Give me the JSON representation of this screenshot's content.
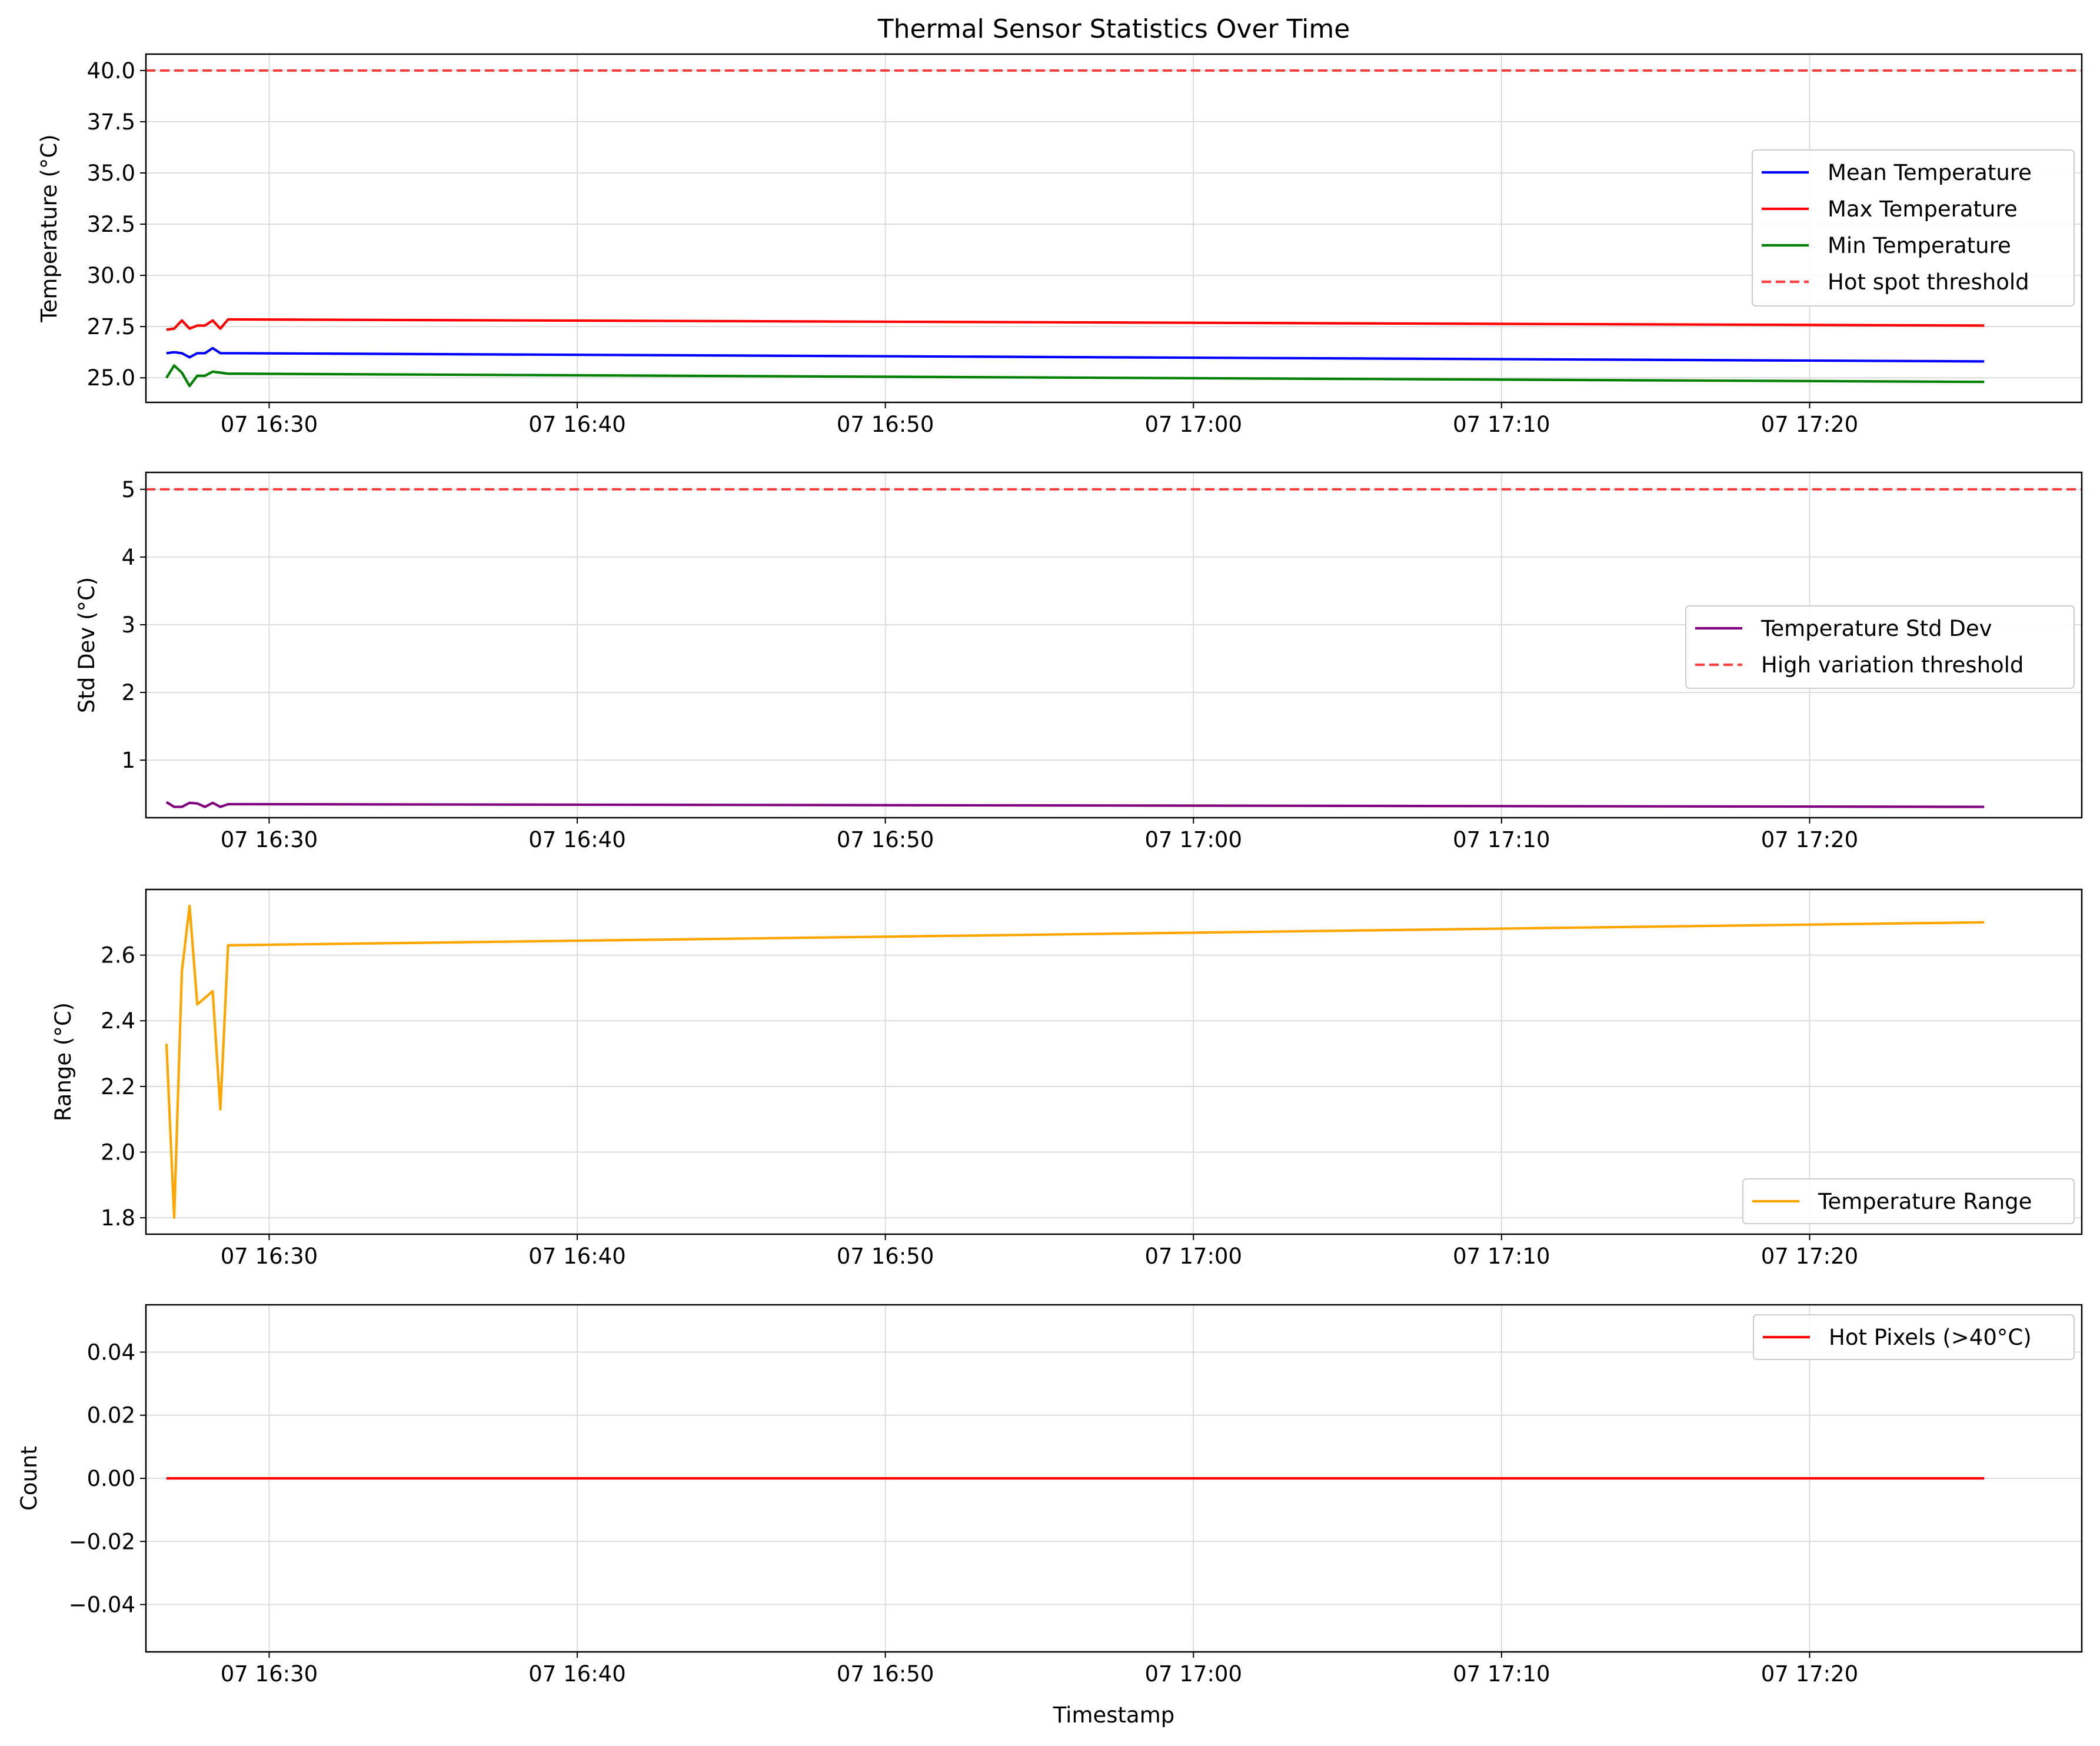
{
  "chart_data": [
    {
      "type": "line",
      "title": "Thermal Sensor Statistics Over Time",
      "xlabel": "",
      "ylabel": "Temperature (°C)",
      "x_ticks": [
        "07 16:30",
        "07 16:40",
        "07 16:50",
        "07 17:00",
        "07 17:10",
        "07 17:20"
      ],
      "y_ticks": [
        "25.0",
        "27.5",
        "30.0",
        "32.5",
        "35.0",
        "37.5",
        "40.0"
      ],
      "ylim": [
        23.8,
        40.8
      ],
      "grid": true,
      "legend_position": "center-right",
      "x": [
        "16:26:40",
        "16:26:55",
        "16:27:10",
        "16:27:25",
        "16:27:40",
        "16:27:55",
        "16:28:10",
        "16:28:25",
        "16:28:40",
        "16:28:55",
        "17:25:40"
      ],
      "series": [
        {
          "name": "Mean Temperature",
          "color": "#0000ff",
          "values": [
            26.2,
            26.25,
            26.2,
            26.0,
            26.2,
            26.2,
            26.45,
            26.2,
            26.2,
            26.2,
            25.8
          ]
        },
        {
          "name": "Max Temperature",
          "color": "#ff0000",
          "values": [
            27.35,
            27.4,
            27.8,
            27.4,
            27.55,
            27.55,
            27.8,
            27.4,
            27.85,
            27.85,
            27.55
          ]
        },
        {
          "name": "Min Temperature",
          "color": "#008000",
          "values": [
            25.0,
            25.6,
            25.25,
            24.6,
            25.1,
            25.1,
            25.3,
            25.25,
            25.2,
            25.2,
            24.8
          ]
        }
      ],
      "thresholds": [
        {
          "name": "Hot spot threshold",
          "value": 40.0,
          "color": "#ff0000",
          "style": "dashed"
        }
      ]
    },
    {
      "type": "line",
      "title": "",
      "xlabel": "",
      "ylabel": "Std Dev (°C)",
      "x_ticks": [
        "07 16:30",
        "07 16:40",
        "07 16:50",
        "07 17:00",
        "07 17:10",
        "07 17:20"
      ],
      "y_ticks": [
        "1",
        "2",
        "3",
        "4",
        "5"
      ],
      "ylim": [
        0.15,
        5.25
      ],
      "grid": true,
      "legend_position": "center-right",
      "x": [
        "16:26:40",
        "16:26:55",
        "16:27:10",
        "16:27:25",
        "16:27:40",
        "16:27:55",
        "16:28:10",
        "16:28:25",
        "16:28:40",
        "16:28:55",
        "17:25:40"
      ],
      "series": [
        {
          "name": "Temperature Std Dev",
          "color": "#800080",
          "values": [
            0.38,
            0.31,
            0.31,
            0.37,
            0.36,
            0.31,
            0.37,
            0.31,
            0.35,
            0.35,
            0.31
          ]
        }
      ],
      "thresholds": [
        {
          "name": "High variation threshold",
          "value": 5.0,
          "color": "#ff0000",
          "style": "dashed"
        }
      ]
    },
    {
      "type": "line",
      "title": "",
      "xlabel": "",
      "ylabel": "Range (°C)",
      "x_ticks": [
        "07 16:30",
        "07 16:40",
        "07 16:50",
        "07 17:00",
        "07 17:10",
        "07 17:20"
      ],
      "y_ticks": [
        "1.8",
        "2.0",
        "2.2",
        "2.4",
        "2.6"
      ],
      "ylim": [
        1.75,
        2.8
      ],
      "grid": true,
      "legend_position": "lower-right",
      "x": [
        "16:26:40",
        "16:26:55",
        "16:27:10",
        "16:27:25",
        "16:27:40",
        "16:27:55",
        "16:28:10",
        "16:28:25",
        "16:28:40",
        "17:25:40"
      ],
      "series": [
        {
          "name": "Temperature Range",
          "color": "#ffa500",
          "values": [
            2.33,
            1.8,
            2.55,
            2.75,
            2.45,
            2.47,
            2.49,
            2.13,
            2.63,
            2.7
          ]
        }
      ],
      "thresholds": []
    },
    {
      "type": "line",
      "title": "",
      "xlabel": "Timestamp",
      "ylabel": "Count",
      "x_ticks": [
        "07 16:30",
        "07 16:40",
        "07 16:50",
        "07 17:00",
        "07 17:10",
        "07 17:20"
      ],
      "y_ticks": [
        "−0.04",
        "−0.02",
        "0.00",
        "0.02",
        "0.04"
      ],
      "ylim": [
        -0.055,
        0.055
      ],
      "grid": true,
      "legend_position": "upper-right",
      "x": [
        "16:26:40",
        "17:25:40"
      ],
      "series": [
        {
          "name": "Hot Pixels (>40°C)",
          "color": "#ff0000",
          "values": [
            0,
            0
          ]
        }
      ],
      "thresholds": []
    }
  ]
}
